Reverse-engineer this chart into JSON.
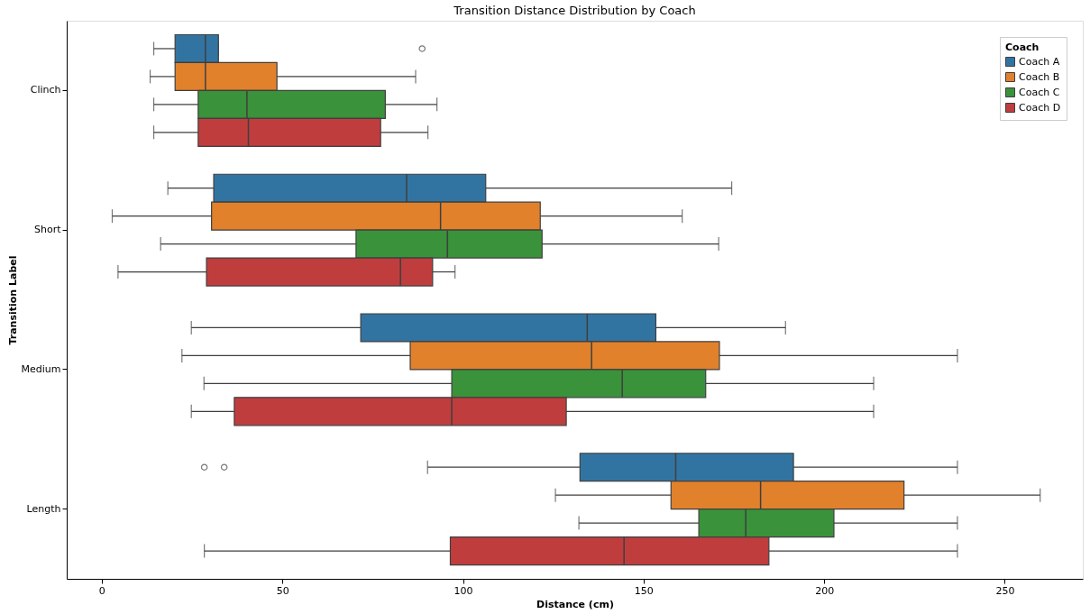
{
  "chart_data": {
    "type": "box",
    "orientation": "horizontal",
    "title": "Transition Distance Distribution by Coach",
    "xlabel": "Distance (cm)",
    "ylabel": "Transition Label",
    "legend_title": "Coach",
    "legend": "top right",
    "categories": [
      "Clinch",
      "Short",
      "Medium",
      "Length"
    ],
    "xlim": [
      -9.7,
      271.6
    ],
    "xticks": [
      0,
      50,
      100,
      150,
      200,
      250
    ],
    "series": [
      {
        "name": "Coach A",
        "color": "#3274a1",
        "boxes": [
          {
            "low": 14.4,
            "q1": 20.3,
            "median": 28.7,
            "q3": 32.3,
            "high": 32.3,
            "outliers": [
              88.7
            ]
          },
          {
            "low": 18.3,
            "q1": 31.0,
            "median": 84.4,
            "q3": 106.3,
            "high": 174.4
          },
          {
            "low": 24.8,
            "q1": 71.7,
            "median": 134.4,
            "q3": 153.4,
            "high": 189.3
          },
          {
            "low": 90.2,
            "q1": 132.4,
            "median": 158.9,
            "q3": 191.5,
            "high": 236.9,
            "outliers": [
              28.4,
              33.9
            ]
          }
        ]
      },
      {
        "name": "Coach B",
        "color": "#e1812c",
        "boxes": [
          {
            "low": 13.4,
            "q1": 20.3,
            "median": 28.7,
            "q3": 48.5,
            "high": 86.9
          },
          {
            "low": 2.9,
            "q1": 30.4,
            "median": 93.8,
            "q3": 121.4,
            "high": 160.7
          },
          {
            "low": 22.2,
            "q1": 85.4,
            "median": 135.6,
            "q3": 171.0,
            "high": 236.9
          },
          {
            "low": 125.6,
            "q1": 157.6,
            "median": 182.4,
            "q3": 222.1,
            "high": 259.8
          }
        ]
      },
      {
        "name": "Coach C",
        "color": "#3a923a",
        "boxes": [
          {
            "low": 14.4,
            "q1": 26.7,
            "median": 40.2,
            "q3": 78.5,
            "high": 92.8
          },
          {
            "low": 16.3,
            "q1": 70.4,
            "median": 95.7,
            "q3": 121.9,
            "high": 170.8
          },
          {
            "low": 28.3,
            "q1": 96.9,
            "median": 144.1,
            "q3": 167.2,
            "high": 213.7
          },
          {
            "low": 132.1,
            "q1": 165.3,
            "median": 178.3,
            "q3": 202.7,
            "high": 236.9
          }
        ]
      },
      {
        "name": "Coach D",
        "color": "#c03d3e",
        "boxes": [
          {
            "low": 14.4,
            "q1": 26.7,
            "median": 40.6,
            "q3": 77.2,
            "high": 90.3
          },
          {
            "low": 4.5,
            "q1": 29.0,
            "median": 82.7,
            "q3": 91.6,
            "high": 97.8
          },
          {
            "low": 24.8,
            "q1": 36.7,
            "median": 96.9,
            "q3": 128.6,
            "high": 213.7
          },
          {
            "low": 28.4,
            "q1": 96.5,
            "median": 144.6,
            "q3": 184.7,
            "high": 236.9
          }
        ]
      }
    ]
  }
}
